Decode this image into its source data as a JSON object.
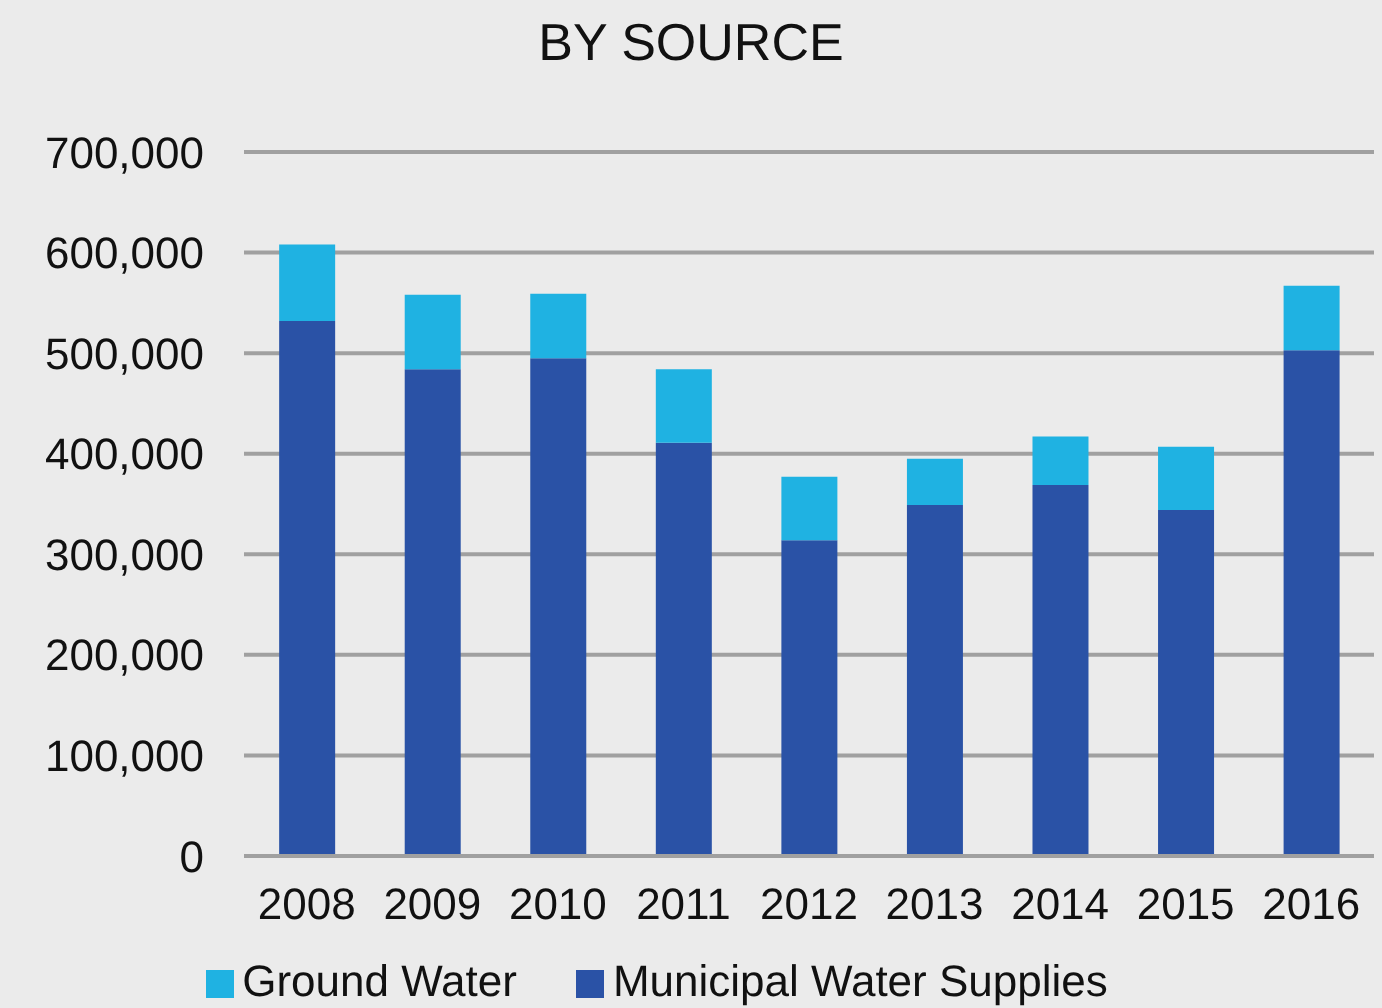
{
  "chart_data": {
    "type": "bar",
    "title": "BY SOURCE",
    "stacked": true,
    "categories": [
      "2008",
      "2009",
      "2010",
      "2011",
      "2012",
      "2013",
      "2014",
      "2015",
      "2016"
    ],
    "series": [
      {
        "name": "Municipal Water Supplies",
        "color": "#2a52a6",
        "values": [
          532000,
          484000,
          495000,
          411000,
          314000,
          349000,
          369000,
          344000,
          503000
        ]
      },
      {
        "name": "Ground Water",
        "color": "#1fb2e2",
        "values": [
          76000,
          74000,
          64000,
          73000,
          63000,
          46000,
          48000,
          63000,
          64000
        ]
      }
    ],
    "ylim": [
      0,
      700000
    ],
    "yticks": [
      {
        "value": 0,
        "label": "0"
      },
      {
        "value": 100000,
        "label": "100,000"
      },
      {
        "value": 200000,
        "label": "200,000"
      },
      {
        "value": 300000,
        "label": "300,000"
      },
      {
        "value": 400000,
        "label": "400,000"
      },
      {
        "value": 500000,
        "label": "500,000"
      },
      {
        "value": 600000,
        "label": "600,000"
      },
      {
        "value": 700000,
        "label": "700,000"
      }
    ],
    "grid": "y",
    "legend": "bottom"
  }
}
